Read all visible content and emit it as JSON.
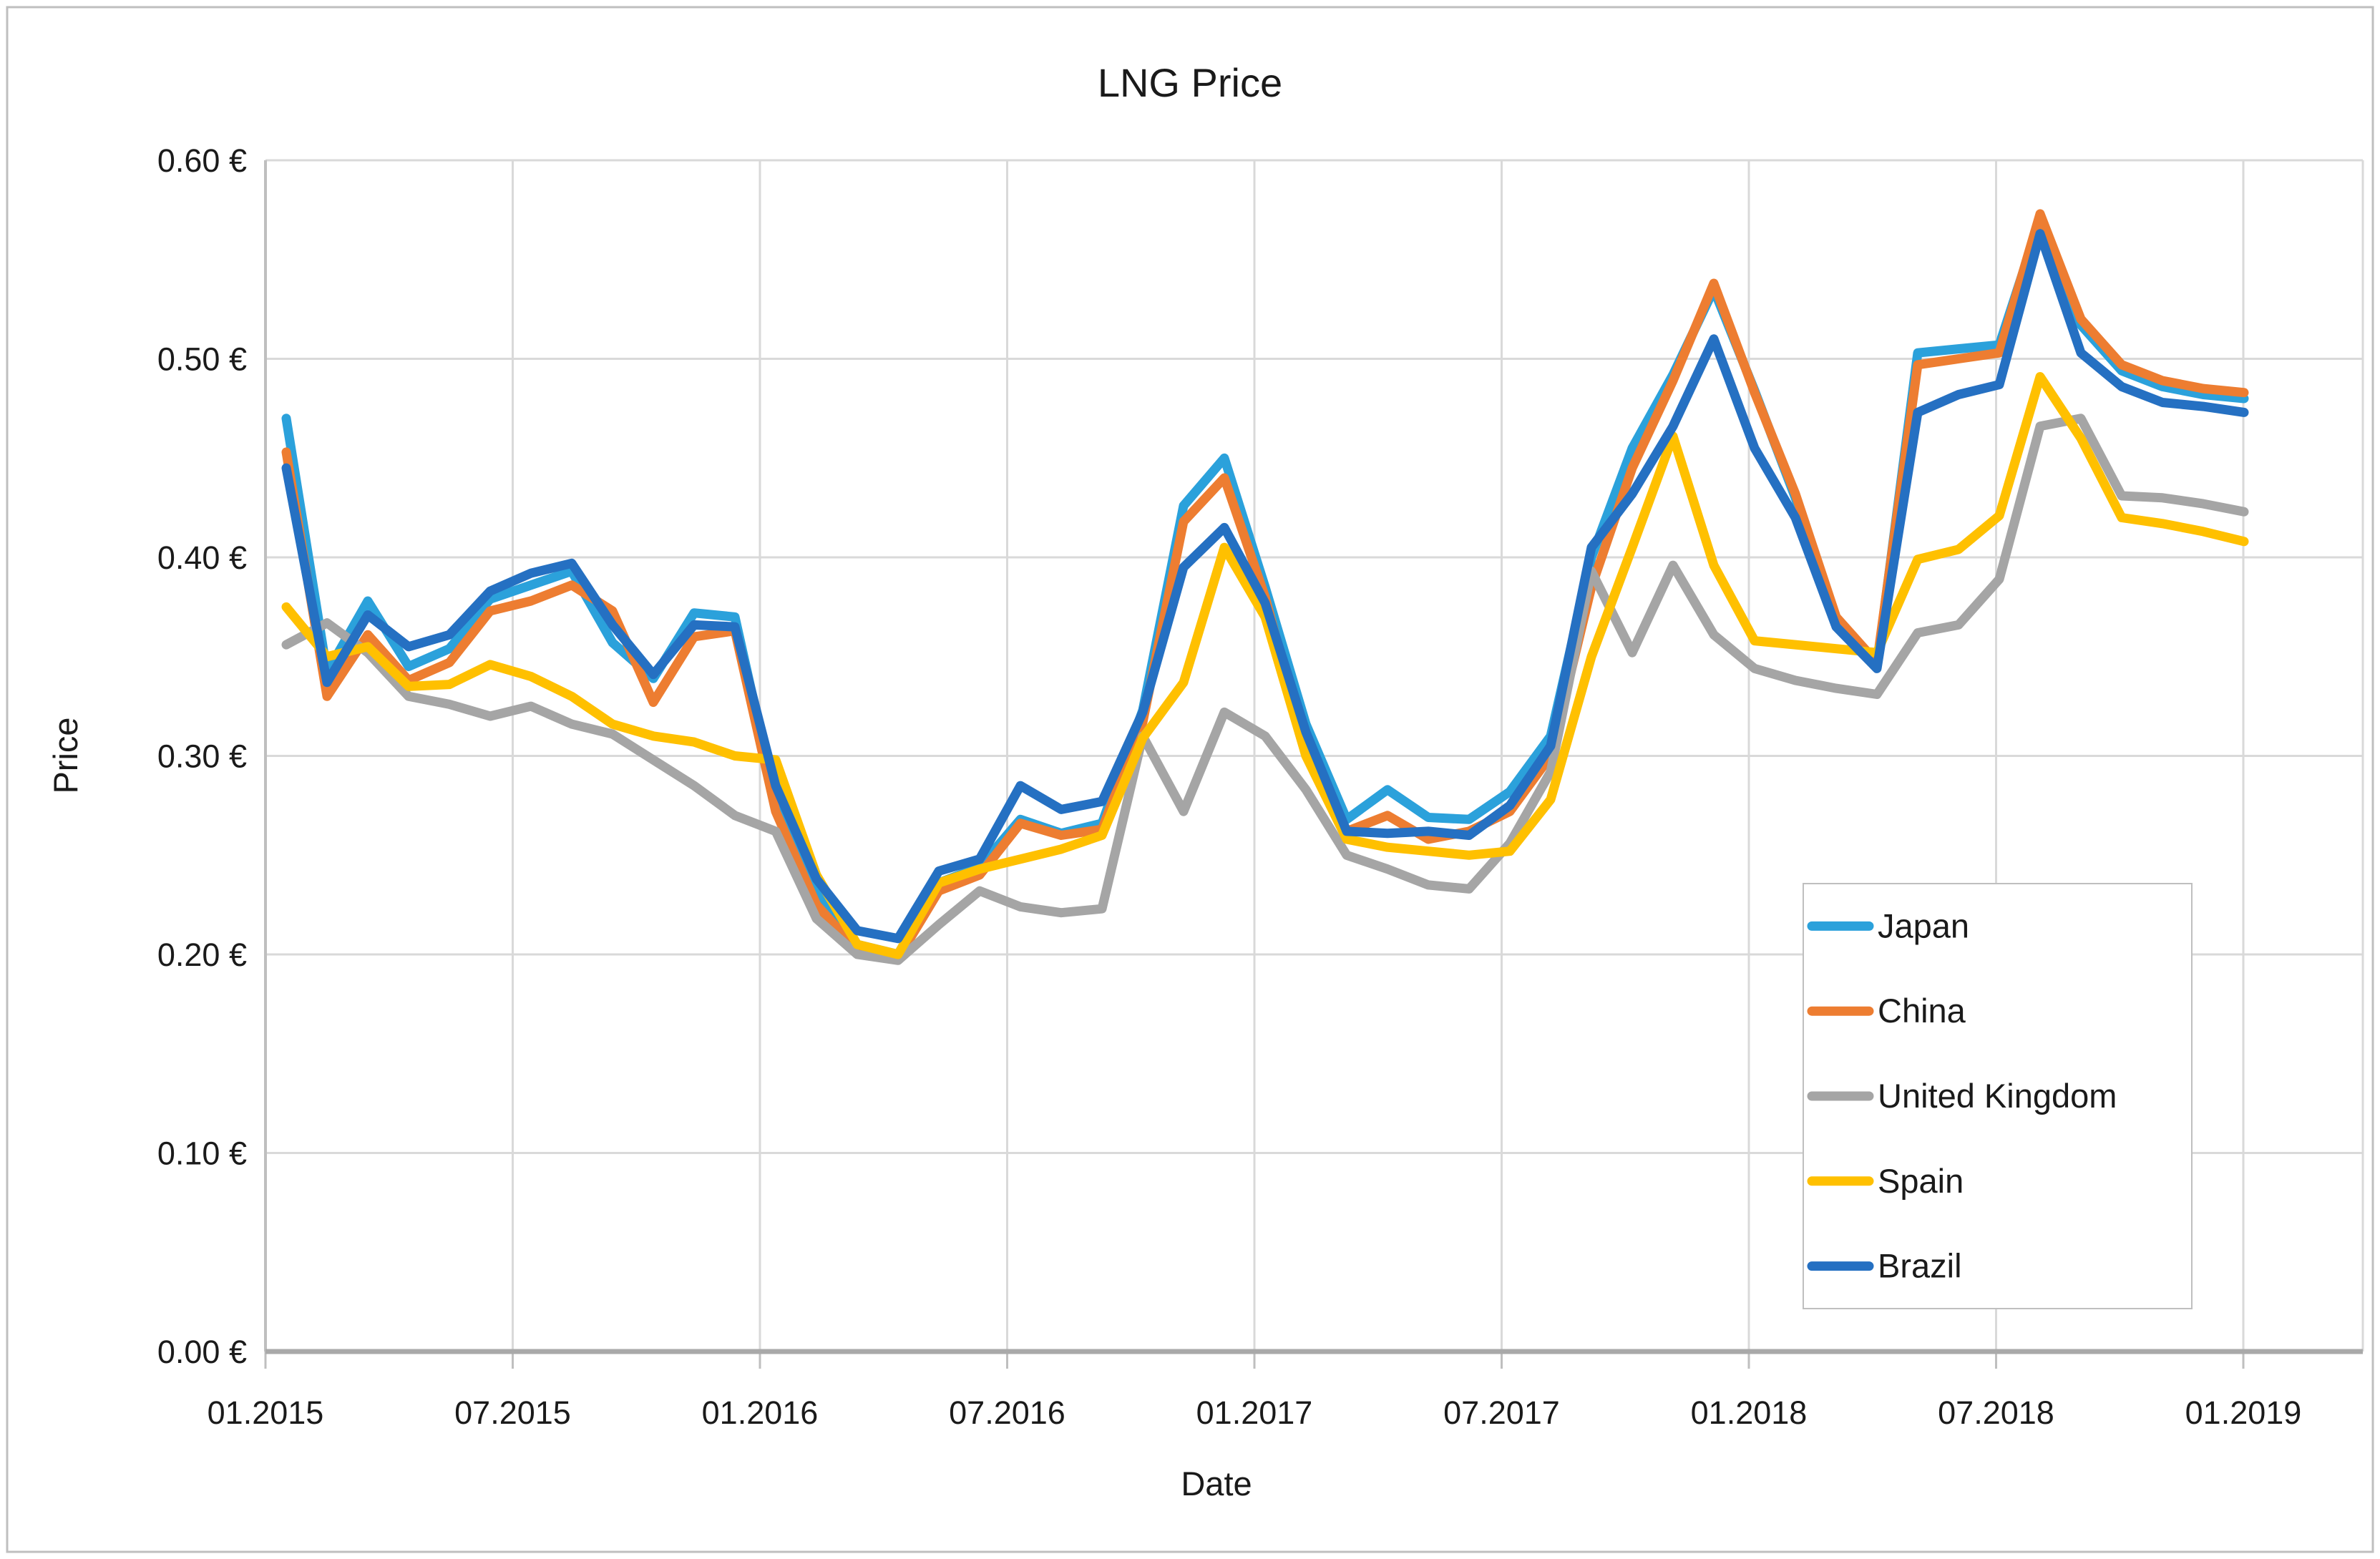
{
  "chart_data": {
    "type": "line",
    "title": "LNG Price",
    "xlabel": "Date",
    "ylabel": "Price",
    "ylim": [
      0.0,
      0.6
    ],
    "y_tick_step": 0.1,
    "y_tick_labels": [
      "0.00 €",
      "0.10 €",
      "0.20 €",
      "0.30 €",
      "0.40 €",
      "0.50 €",
      "0.60 €"
    ],
    "x_tick_labels": [
      "01.2015",
      "07.2015",
      "01.2016",
      "07.2016",
      "01.2017",
      "07.2017",
      "01.2018",
      "07.2018",
      "01.2019"
    ],
    "x_tick_month_indices": [
      0,
      6,
      12,
      18,
      24,
      30,
      36,
      42,
      48
    ],
    "grid": true,
    "legend_position": "inside-right",
    "categories": [
      "01.2015",
      "02.2015",
      "03.2015",
      "04.2015",
      "05.2015",
      "06.2015",
      "07.2015",
      "08.2015",
      "09.2015",
      "10.2015",
      "11.2015",
      "12.2015",
      "01.2016",
      "02.2016",
      "03.2016",
      "04.2016",
      "05.2016",
      "06.2016",
      "07.2016",
      "08.2016",
      "09.2016",
      "10.2016",
      "11.2016",
      "12.2016",
      "01.2017",
      "02.2017",
      "03.2017",
      "04.2017",
      "05.2017",
      "06.2017",
      "07.2017",
      "08.2017",
      "09.2017",
      "10.2017",
      "11.2017",
      "12.2017",
      "01.2018",
      "02.2018",
      "03.2018",
      "04.2018",
      "05.2018",
      "06.2018",
      "07.2018",
      "08.2018",
      "09.2018",
      "10.2018",
      "11.2018",
      "12.2018",
      "01.2019"
    ],
    "series": [
      {
        "name": "Japan",
        "color": "#2BA1DB",
        "values": [
          0.47,
          0.342,
          0.378,
          0.345,
          0.354,
          0.379,
          0.386,
          0.393,
          0.357,
          0.339,
          0.372,
          0.37,
          0.278,
          0.232,
          0.205,
          0.2,
          0.236,
          0.244,
          0.268,
          0.261,
          0.266,
          0.323,
          0.426,
          0.45,
          0.385,
          0.316,
          0.268,
          0.283,
          0.269,
          0.268,
          0.282,
          0.31,
          0.4,
          0.455,
          0.492,
          0.535,
          0.484,
          0.43,
          0.368,
          0.345,
          0.503,
          0.505,
          0.507,
          0.57,
          0.517,
          0.494,
          0.486,
          0.482,
          0.48
        ]
      },
      {
        "name": "China",
        "color": "#ED7D31",
        "values": [
          0.453,
          0.33,
          0.361,
          0.338,
          0.347,
          0.373,
          0.378,
          0.386,
          0.373,
          0.327,
          0.36,
          0.363,
          0.272,
          0.225,
          0.202,
          0.198,
          0.232,
          0.24,
          0.266,
          0.26,
          0.263,
          0.317,
          0.418,
          0.44,
          0.38,
          0.303,
          0.262,
          0.27,
          0.258,
          0.262,
          0.272,
          0.3,
          0.385,
          0.445,
          0.489,
          0.538,
          0.483,
          0.432,
          0.37,
          0.347,
          0.497,
          0.5,
          0.503,
          0.573,
          0.52,
          0.497,
          0.489,
          0.485,
          0.483
        ]
      },
      {
        "name": "United Kingdom",
        "color": "#A5A5A5",
        "values": [
          0.356,
          0.367,
          0.352,
          0.33,
          0.326,
          0.32,
          0.325,
          0.316,
          0.311,
          0.298,
          0.285,
          0.27,
          0.262,
          0.218,
          0.2,
          0.197,
          0.215,
          0.232,
          0.224,
          0.221,
          0.223,
          0.31,
          0.272,
          0.322,
          0.31,
          0.283,
          0.25,
          0.243,
          0.235,
          0.233,
          0.256,
          0.292,
          0.393,
          0.352,
          0.396,
          0.361,
          0.344,
          0.338,
          0.334,
          0.331,
          0.362,
          0.366,
          0.389,
          0.466,
          0.47,
          0.431,
          0.43,
          0.427,
          0.423
        ]
      },
      {
        "name": "Spain",
        "color": "#FFC000",
        "values": [
          0.375,
          0.35,
          0.355,
          0.335,
          0.336,
          0.346,
          0.34,
          0.33,
          0.316,
          0.31,
          0.307,
          0.3,
          0.298,
          0.24,
          0.205,
          0.2,
          0.236,
          0.243,
          0.248,
          0.253,
          0.26,
          0.309,
          0.337,
          0.405,
          0.37,
          0.3,
          0.258,
          0.254,
          0.252,
          0.25,
          0.252,
          0.278,
          0.35,
          0.405,
          0.461,
          0.396,
          0.358,
          0.356,
          0.354,
          0.352,
          0.399,
          0.404,
          0.421,
          0.491,
          0.46,
          0.42,
          0.417,
          0.413,
          0.408
        ]
      },
      {
        "name": "Brazil",
        "color": "#2570C2",
        "values": [
          0.445,
          0.337,
          0.371,
          0.355,
          0.361,
          0.383,
          0.392,
          0.397,
          0.366,
          0.341,
          0.366,
          0.365,
          0.285,
          0.238,
          0.212,
          0.208,
          0.242,
          0.248,
          0.285,
          0.273,
          0.277,
          0.322,
          0.395,
          0.415,
          0.377,
          0.312,
          0.262,
          0.261,
          0.262,
          0.26,
          0.275,
          0.305,
          0.405,
          0.432,
          0.466,
          0.51,
          0.455,
          0.42,
          0.365,
          0.344,
          0.473,
          0.482,
          0.487,
          0.563,
          0.503,
          0.486,
          0.478,
          0.476,
          0.473
        ]
      }
    ],
    "legend_entries": [
      "Japan",
      "China",
      "United Kingdom",
      "Spain",
      "Brazil"
    ]
  },
  "colors": {
    "gridline": "#D9D9D9",
    "plot_border": "#BFBFBF",
    "axis_line": "#A9A9A9",
    "figure_border": "#BFBFBF",
    "text": "#1a1a1a"
  }
}
